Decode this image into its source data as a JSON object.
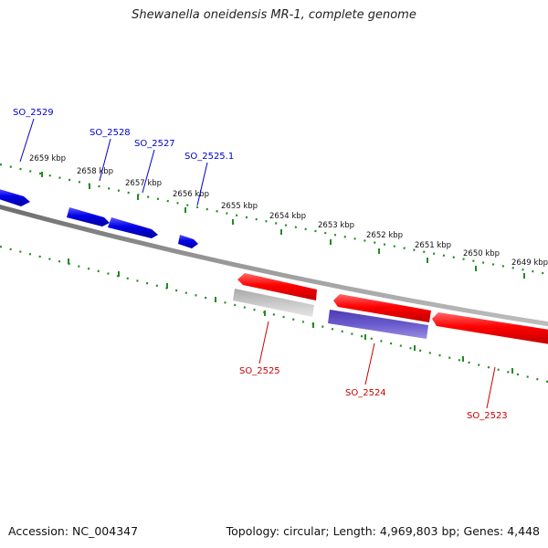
{
  "title": "Shewanella oneidensis MR-1, complete genome",
  "accession_text": "Accession: NC_004347",
  "summary_text": "Topology: circular; Length: 4,969,803 bp; Genes: 4,448",
  "colors": {
    "forward_gene": "#0000e6",
    "reverse_gene": "#ff0000",
    "gray_feature": "#c0c0c0",
    "purple_feature": "#6a5acd",
    "ruler": "#228b22",
    "backbone": "#888888"
  },
  "kbp_labels": [
    "2659 kbp",
    "2658 kbp",
    "2657 kbp",
    "2656 kbp",
    "2655 kbp",
    "2654 kbp",
    "2653 kbp",
    "2652 kbp",
    "2651 kbp",
    "2650 kbp",
    "2649 kbp"
  ],
  "forward_genes": [
    "SO_2529",
    "SO_2528",
    "SO_2527",
    "SO_2525.1"
  ],
  "reverse_genes": [
    "SO_2525",
    "SO_2524",
    "SO_2523"
  ]
}
